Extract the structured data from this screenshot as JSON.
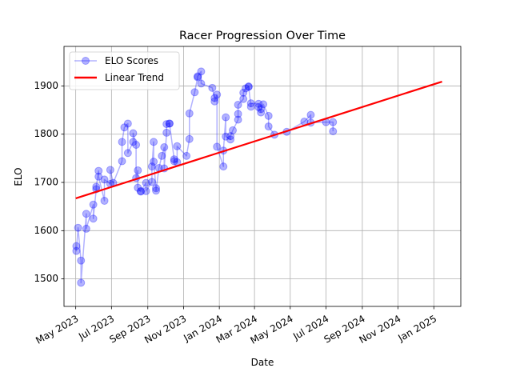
{
  "chart_data": {
    "type": "line",
    "title": "Racer Progression Over Time",
    "xlabel": "Date",
    "ylabel": "ELO",
    "xlim": [
      "2023-04-11",
      "2025-02-16"
    ],
    "ylim": [
      1443,
      1982
    ],
    "grid": true,
    "legend_position": "upper-left",
    "x_ticks": [
      {
        "date": "2023-05-01",
        "label": "May 2023"
      },
      {
        "date": "2023-07-01",
        "label": "Jul 2023"
      },
      {
        "date": "2023-09-01",
        "label": "Sep 2023"
      },
      {
        "date": "2023-11-01",
        "label": "Nov 2023"
      },
      {
        "date": "2024-01-01",
        "label": "Jan 2024"
      },
      {
        "date": "2024-03-01",
        "label": "Mar 2024"
      },
      {
        "date": "2024-05-01",
        "label": "May 2024"
      },
      {
        "date": "2024-07-01",
        "label": "Jul 2024"
      },
      {
        "date": "2024-09-01",
        "label": "Sep 2024"
      },
      {
        "date": "2024-11-01",
        "label": "Nov 2024"
      },
      {
        "date": "2025-01-01",
        "label": "Jan 2025"
      }
    ],
    "y_ticks": [
      1500,
      1600,
      1700,
      1800,
      1900
    ],
    "series": [
      {
        "name": "ELO Scores",
        "color": "#0000ff",
        "alpha": 0.3,
        "marker": "circle",
        "points": [
          [
            "2023-05-02",
            1568
          ],
          [
            "2023-05-02",
            1558
          ],
          [
            "2023-05-05",
            1606
          ],
          [
            "2023-05-10",
            1538
          ],
          [
            "2023-05-10",
            1492
          ],
          [
            "2023-05-19",
            1635
          ],
          [
            "2023-05-19",
            1604
          ],
          [
            "2023-05-31",
            1654
          ],
          [
            "2023-05-31",
            1625
          ],
          [
            "2023-06-05",
            1686
          ],
          [
            "2023-06-05",
            1691
          ],
          [
            "2023-06-09",
            1724
          ],
          [
            "2023-06-09",
            1712
          ],
          [
            "2023-06-19",
            1662
          ],
          [
            "2023-06-19",
            1706
          ],
          [
            "2023-06-29",
            1697
          ],
          [
            "2023-06-29",
            1726
          ],
          [
            "2023-07-04",
            1699
          ],
          [
            "2023-07-19",
            1744
          ],
          [
            "2023-07-19",
            1784
          ],
          [
            "2023-07-23",
            1814
          ],
          [
            "2023-07-29",
            1822
          ],
          [
            "2023-07-29",
            1761
          ],
          [
            "2023-08-07",
            1784
          ],
          [
            "2023-08-07",
            1802
          ],
          [
            "2023-08-12",
            1778
          ],
          [
            "2023-08-12",
            1709
          ],
          [
            "2023-08-15",
            1725
          ],
          [
            "2023-08-15",
            1689
          ],
          [
            "2023-08-20",
            1681
          ],
          [
            "2023-08-20",
            1682
          ],
          [
            "2023-08-29",
            1699
          ],
          [
            "2023-08-29",
            1682
          ],
          [
            "2023-09-08",
            1701
          ],
          [
            "2023-09-08",
            1733
          ],
          [
            "2023-09-11",
            1784
          ],
          [
            "2023-09-11",
            1743
          ],
          [
            "2023-09-15",
            1688
          ],
          [
            "2023-09-15",
            1683
          ],
          [
            "2023-09-20",
            1730
          ],
          [
            "2023-09-25",
            1755
          ],
          [
            "2023-09-29",
            1773
          ],
          [
            "2023-09-29",
            1729
          ],
          [
            "2023-10-03",
            1803
          ],
          [
            "2023-10-03",
            1821
          ],
          [
            "2023-10-08",
            1822
          ],
          [
            "2023-10-08",
            1822
          ],
          [
            "2023-10-16",
            1748
          ],
          [
            "2023-10-16",
            1744
          ],
          [
            "2023-10-21",
            1742
          ],
          [
            "2023-10-21",
            1775
          ],
          [
            "2023-11-06",
            1755
          ],
          [
            "2023-11-11",
            1790
          ],
          [
            "2023-11-11",
            1843
          ],
          [
            "2023-11-20",
            1887
          ],
          [
            "2023-11-25",
            1918
          ],
          [
            "2023-11-25",
            1920
          ],
          [
            "2023-12-01",
            1930
          ],
          [
            "2023-12-01",
            1905
          ],
          [
            "2023-12-20",
            1896
          ],
          [
            "2023-12-24",
            1875
          ],
          [
            "2023-12-24",
            1868
          ],
          [
            "2023-12-28",
            1882
          ],
          [
            "2023-12-28",
            1774
          ],
          [
            "2024-01-08",
            1733
          ],
          [
            "2024-01-08",
            1766
          ],
          [
            "2024-01-12",
            1835
          ],
          [
            "2024-01-12",
            1795
          ],
          [
            "2024-01-20",
            1789
          ],
          [
            "2024-01-20",
            1796
          ],
          [
            "2024-01-24",
            1808
          ],
          [
            "2024-02-02",
            1830
          ],
          [
            "2024-02-02",
            1842
          ],
          [
            "2024-02-02",
            1861
          ],
          [
            "2024-02-11",
            1873
          ],
          [
            "2024-02-11",
            1886
          ],
          [
            "2024-02-15",
            1895
          ],
          [
            "2024-02-20",
            1898
          ],
          [
            "2024-02-20",
            1899
          ],
          [
            "2024-02-24",
            1857
          ],
          [
            "2024-02-24",
            1864
          ],
          [
            "2024-03-08",
            1863
          ],
          [
            "2024-03-08",
            1856
          ],
          [
            "2024-03-12",
            1845
          ],
          [
            "2024-03-12",
            1852
          ],
          [
            "2024-03-16",
            1862
          ],
          [
            "2024-03-25",
            1838
          ],
          [
            "2024-03-25",
            1816
          ],
          [
            "2024-04-04",
            1799
          ],
          [
            "2024-04-25",
            1805
          ],
          [
            "2024-05-25",
            1826
          ],
          [
            "2024-06-05",
            1840
          ],
          [
            "2024-06-05",
            1824
          ],
          [
            "2024-07-01",
            1825
          ],
          [
            "2024-07-13",
            1825
          ],
          [
            "2024-07-13",
            1806
          ]
        ]
      },
      {
        "name": "Linear Trend",
        "color": "#ff0000",
        "points": [
          [
            "2023-05-01",
            1667
          ],
          [
            "2025-01-15",
            1909
          ]
        ]
      }
    ]
  }
}
